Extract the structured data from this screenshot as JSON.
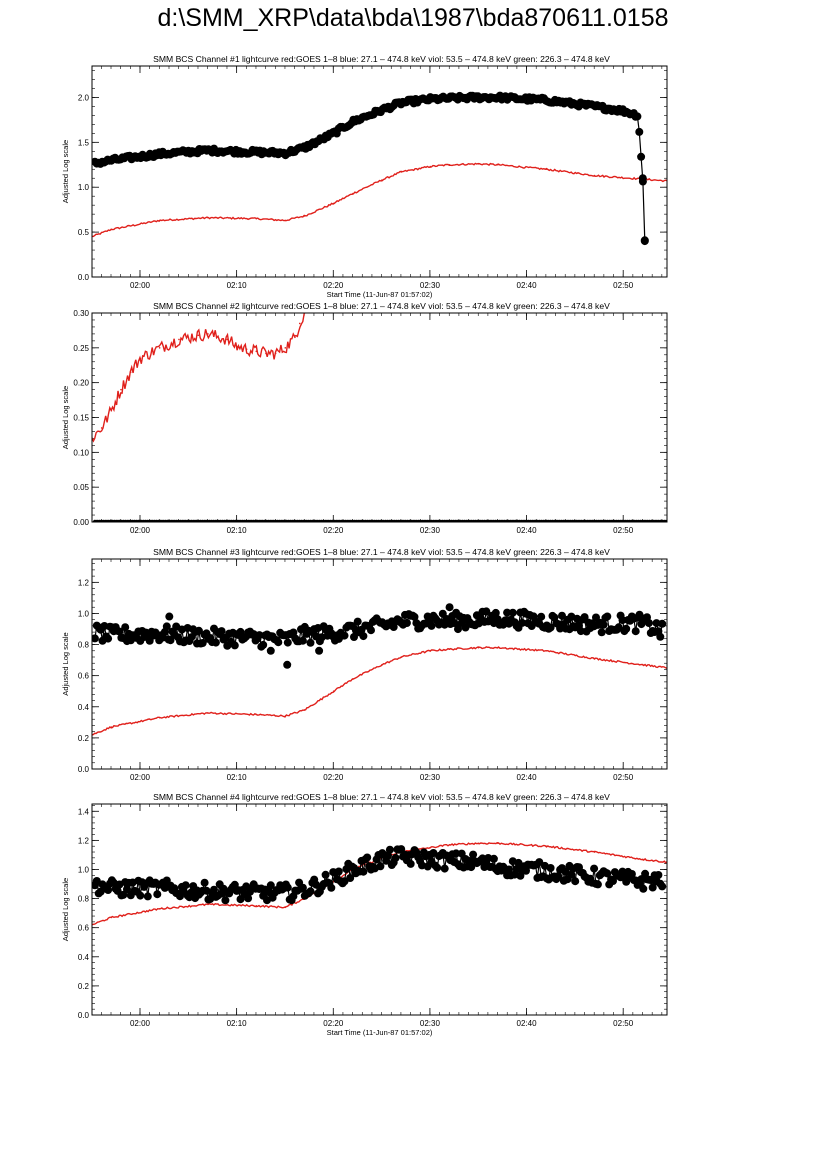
{
  "page": {
    "title": "d:\\SMM_XRP\\data\\bda\\1987\\bda870611.0158"
  },
  "colors": {
    "goes": "#e0201b",
    "bcs": "#000000",
    "axes": "#000000"
  },
  "chart_data": [
    {
      "type": "line",
      "title": "SMM BCS Channel #1 lightcurve  red:GOES 1–8  blue: 27.1 – 474.8 keV  viol: 53.5 – 474.8 keV  green: 226.3 – 474.8 keV",
      "xlabel": "Start Time (11-Jun-87 01:57:02)",
      "ylabel": "Adjusted Log scale",
      "x_ticks": [
        "02:00",
        "02:10",
        "02:20",
        "02:30",
        "02:40",
        "02:50"
      ],
      "y_ticks": [
        "0.0",
        "0.5",
        "1.0",
        "1.5",
        "2.0"
      ],
      "xlim": [
        -2.0,
        57.5
      ],
      "ylim": [
        0,
        2.35
      ],
      "series": [
        {
          "key": "goes",
          "color": "#e0201b",
          "markers": false,
          "x": [
            -2,
            0,
            5,
            10,
            15,
            18,
            20,
            23,
            25,
            28,
            30,
            33,
            35,
            38,
            40,
            45,
            50,
            55,
            57.5
          ],
          "y": [
            0.45,
            0.53,
            0.63,
            0.66,
            0.65,
            0.63,
            0.68,
            0.82,
            0.93,
            1.08,
            1.17,
            1.23,
            1.25,
            1.26,
            1.25,
            1.2,
            1.13,
            1.09,
            1.07
          ]
        },
        {
          "key": "bcs",
          "color": "#000000",
          "markers": true,
          "x": [
            -2,
            0,
            5,
            10,
            15,
            18,
            20,
            23,
            25,
            28,
            30,
            33,
            35,
            38,
            40,
            45,
            50,
            53,
            54.5,
            55,
            55.2
          ],
          "y": [
            1.26,
            1.3,
            1.37,
            1.41,
            1.39,
            1.38,
            1.44,
            1.6,
            1.73,
            1.86,
            1.94,
            1.98,
            1.99,
            2.0,
            2.0,
            1.97,
            1.9,
            1.85,
            1.8,
            1.1,
            0.4
          ]
        }
      ]
    },
    {
      "type": "line",
      "title": "SMM BCS Channel #2 lightcurve  red:GOES 1–8  blue: 27.1 – 474.8 keV  viol: 53.5 – 474.8 keV  green: 226.3 – 474.8 keV",
      "xlabel": "",
      "ylabel": "Adjusted Log scale",
      "x_ticks": [
        "02:00",
        "02:10",
        "02:20",
        "02:30",
        "02:40",
        "02:50"
      ],
      "y_ticks": [
        "0.00",
        "0.05",
        "0.10",
        "0.15",
        "0.20",
        "0.25",
        "0.30"
      ],
      "xlim": [
        -2.0,
        57.5
      ],
      "ylim": [
        0,
        0.3
      ],
      "series": [
        {
          "key": "goes",
          "color": "#e0201b",
          "markers": false,
          "x": [
            -2,
            -1,
            0,
            1,
            2,
            3,
            5,
            7,
            9,
            10,
            12,
            13,
            14,
            15,
            16,
            17,
            18,
            19,
            19.5,
            20
          ],
          "y": [
            0.12,
            0.135,
            0.16,
            0.19,
            0.215,
            0.235,
            0.25,
            0.262,
            0.268,
            0.27,
            0.262,
            0.252,
            0.248,
            0.245,
            0.242,
            0.242,
            0.25,
            0.265,
            0.285,
            0.3
          ]
        },
        {
          "key": "bcs",
          "color": "#000000",
          "markers": true,
          "x": [
            -2,
            10,
            20,
            30,
            40,
            50,
            57.5
          ],
          "y": [
            0,
            0,
            0,
            0,
            0,
            0,
            0
          ]
        }
      ]
    },
    {
      "type": "line",
      "title": "SMM BCS Channel #3 lightcurve  red:GOES 1–8  blue: 27.1 – 474.8 keV  viol: 53.5 – 474.8 keV  green: 226.3 – 474.8 keV",
      "xlabel": "",
      "ylabel": "Adjusted Log scale",
      "x_ticks": [
        "02:00",
        "02:10",
        "02:20",
        "02:30",
        "02:40",
        "02:50"
      ],
      "y_ticks": [
        "0.0",
        "0.2",
        "0.4",
        "0.6",
        "0.8",
        "1.0",
        "1.2"
      ],
      "xlim": [
        -2.0,
        57.5
      ],
      "ylim": [
        0,
        1.35
      ],
      "series": [
        {
          "key": "goes",
          "color": "#e0201b",
          "markers": false,
          "x": [
            -2,
            0,
            5,
            10,
            15,
            18,
            20,
            23,
            25,
            28,
            30,
            33,
            35,
            38,
            40,
            45,
            50,
            55,
            57.5
          ],
          "y": [
            0.22,
            0.27,
            0.33,
            0.36,
            0.35,
            0.34,
            0.38,
            0.5,
            0.58,
            0.67,
            0.72,
            0.76,
            0.77,
            0.78,
            0.78,
            0.76,
            0.71,
            0.67,
            0.65
          ]
        },
        {
          "key": "bcs",
          "color": "#000000",
          "markers": true,
          "x": [
            -2,
            0,
            5,
            10,
            15,
            18,
            20,
            22,
            25,
            28,
            30,
            33,
            35,
            38,
            40,
            45,
            50,
            55,
            57
          ],
          "y": [
            0.88,
            0.86,
            0.87,
            0.85,
            0.84,
            0.83,
            0.86,
            0.87,
            0.89,
            0.92,
            0.95,
            0.96,
            0.95,
            0.96,
            0.97,
            0.95,
            0.93,
            0.94,
            0.88
          ]
        }
      ]
    },
    {
      "type": "line",
      "title": "SMM BCS Channel #4 lightcurve  red:GOES 1–8  blue: 27.1 – 474.8 keV  viol: 53.5 – 474.8 keV  green: 226.3 – 474.8 keV",
      "xlabel": "Start Time (11-Jun-87 01:57:02)",
      "ylabel": "Adjusted Log scale",
      "x_ticks": [
        "02:00",
        "02:10",
        "02:20",
        "02:30",
        "02:40",
        "02:50"
      ],
      "y_ticks": [
        "0.0",
        "0.2",
        "0.4",
        "0.6",
        "0.8",
        "1.0",
        "1.2",
        "1.4"
      ],
      "xlim": [
        -2.0,
        57.5
      ],
      "ylim": [
        0,
        1.45
      ],
      "series": [
        {
          "key": "goes",
          "color": "#e0201b",
          "markers": false,
          "x": [
            -2,
            0,
            5,
            10,
            15,
            18,
            20,
            23,
            25,
            28,
            30,
            33,
            35,
            38,
            40,
            45,
            50,
            55,
            57.5
          ],
          "y": [
            0.62,
            0.67,
            0.73,
            0.76,
            0.75,
            0.74,
            0.8,
            0.92,
            1.0,
            1.08,
            1.12,
            1.15,
            1.17,
            1.18,
            1.18,
            1.16,
            1.12,
            1.07,
            1.05
          ]
        },
        {
          "key": "bcs",
          "color": "#000000",
          "markers": true,
          "x": [
            -2,
            0,
            5,
            10,
            15,
            18,
            20,
            23,
            25,
            28,
            30,
            33,
            35,
            38,
            40,
            45,
            50,
            55,
            57
          ],
          "y": [
            0.9,
            0.87,
            0.87,
            0.85,
            0.84,
            0.84,
            0.86,
            0.93,
            1.0,
            1.07,
            1.09,
            1.07,
            1.06,
            1.05,
            1.02,
            0.99,
            0.95,
            0.92,
            0.93
          ]
        }
      ]
    }
  ]
}
